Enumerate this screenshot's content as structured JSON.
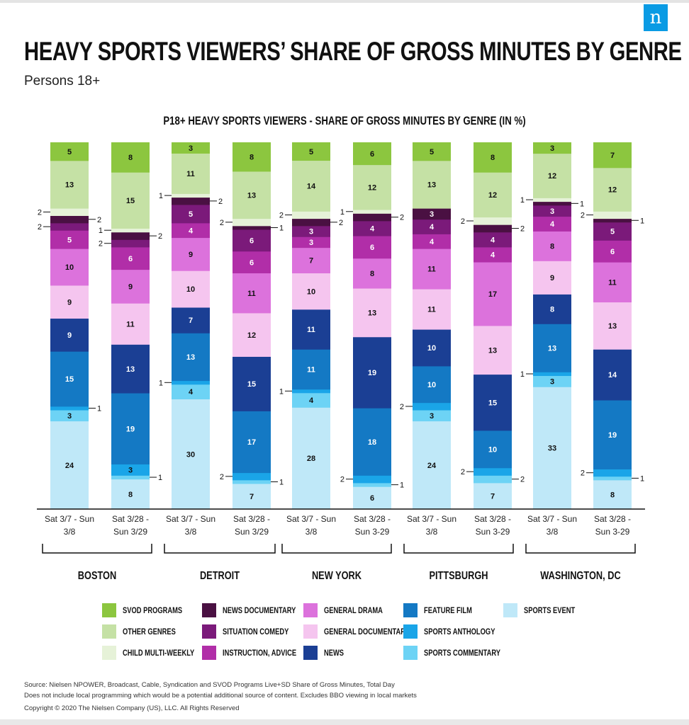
{
  "logo": {
    "letter": "n"
  },
  "header": {
    "title": "HEAVY SPORTS VIEWERS’ SHARE OF GROSS MINUTES BY GENRE",
    "subtitle": "Persons 18+"
  },
  "colors": {
    "svod": "#8cc63f",
    "other": "#c5e1a5",
    "child": "#e6f2d8",
    "news_doc": "#4a1042",
    "sitcom": "#7b1a7a",
    "instruction": "#b12ea8",
    "drama": "#dc72dc",
    "gen_doc": "#f5c5ef",
    "news": "#1b3f94",
    "feature_film": "#1479c4",
    "anthology": "#1aa5e8",
    "commentary": "#6dd3f5",
    "sports_event": "#bfe8f8"
  },
  "chart_data": {
    "type": "bar",
    "stacked": true,
    "title": "P18+ HEAVY SPORTS VIEWERS - SHARE OF GROSS MINUTES BY GENRE (IN %)",
    "ylabel": "",
    "ylim": [
      0,
      100
    ],
    "value_display": "P18+ HEAVY SPORTS VIEWERS - SHARE OF GROSS MINUTES BY GENRE (IN %)",
    "categories": [
      "Sat 3/7 - Sun 3/8",
      "Sat 3/28 - Sun 3/29",
      "Sat 3/7 - Sun 3/8",
      "Sat 3/28 - Sun 3/29",
      "Sat 3/7 - Sun 3/8",
      "Sat 3/28 - Sun 3-29",
      "Sat 3/7 - Sun 3/8",
      "Sat 3/28 - Sun 3-29",
      "Sat 3/7 - Sun 3/8",
      "Sat 3/28 - Sun 3-29"
    ],
    "category_lines": [
      [
        "Sat 3/7 - Sun",
        "3/8"
      ],
      [
        "Sat 3/28 -",
        "Sun 3/29"
      ],
      [
        "Sat 3/7 - Sun",
        "3/8"
      ],
      [
        "Sat 3/28 -",
        "Sun 3/29"
      ],
      [
        "Sat 3/7 - Sun",
        "3/8"
      ],
      [
        "Sat 3/28 -",
        "Sun 3-29"
      ],
      [
        "Sat 3/7 - Sun",
        "3/8"
      ],
      [
        "Sat 3/28 -",
        "Sun 3-29"
      ],
      [
        "Sat 3/7 - Sun",
        "3/8"
      ],
      [
        "Sat 3/28 -",
        "Sun 3-29"
      ]
    ],
    "groups": [
      {
        "name": "BOSTON",
        "bars": [
          0,
          1
        ]
      },
      {
        "name": "DETROIT",
        "bars": [
          2,
          3
        ]
      },
      {
        "name": "NEW YORK",
        "bars": [
          4,
          5
        ]
      },
      {
        "name": "PITTSBURGH",
        "bars": [
          6,
          7
        ]
      },
      {
        "name": "WASHINGTON, DC",
        "bars": [
          8,
          9
        ]
      }
    ],
    "series": [
      {
        "name": "SPORTS EVENT",
        "key": "sports_event",
        "values": [
          24,
          8,
          30,
          7,
          28,
          6,
          24,
          7,
          33,
          8
        ]
      },
      {
        "name": "SPORTS COMMENTARY",
        "key": "commentary",
        "values": [
          3,
          1,
          4,
          1,
          4,
          1,
          3,
          2,
          3,
          1
        ]
      },
      {
        "name": "SPORTS ANTHOLOGY",
        "key": "anthology",
        "values": [
          1,
          3,
          1,
          2,
          1,
          2,
          2,
          2,
          1,
          2
        ]
      },
      {
        "name": "FEATURE FILM",
        "key": "feature_film",
        "values": [
          15,
          19,
          13,
          17,
          11,
          18,
          10,
          10,
          13,
          19
        ]
      },
      {
        "name": "NEWS",
        "key": "news",
        "values": [
          9,
          13,
          7,
          15,
          11,
          19,
          10,
          15,
          8,
          14
        ]
      },
      {
        "name": "GENERAL DOCUMENTARY",
        "key": "gen_doc",
        "values": [
          9,
          11,
          10,
          12,
          10,
          13,
          11,
          13,
          9,
          13
        ]
      },
      {
        "name": "GENERAL DRAMA",
        "key": "drama",
        "values": [
          10,
          9,
          9,
          11,
          7,
          8,
          11,
          17,
          8,
          11
        ]
      },
      {
        "name": "INSTRUCTION, ADVICE",
        "key": "instruction",
        "values": [
          5,
          6,
          4,
          6,
          3,
          6,
          4,
          4,
          4,
          6
        ]
      },
      {
        "name": "SITUATION COMEDY",
        "key": "sitcom",
        "values": [
          2,
          2,
          5,
          6,
          3,
          4,
          4,
          4,
          3,
          5
        ]
      },
      {
        "name": "NEWS DOCUMENTARY",
        "key": "news_doc",
        "values": [
          2,
          2,
          2,
          1,
          2,
          2,
          3,
          2,
          1,
          1
        ]
      },
      {
        "name": "CHILD MULTI-WEEKLY",
        "key": "child",
        "values": [
          2,
          1,
          1,
          2,
          2,
          1,
          0,
          2,
          1,
          2
        ]
      },
      {
        "name": "OTHER GENRES",
        "key": "other",
        "values": [
          13,
          15,
          11,
          13,
          14,
          12,
          13,
          12,
          12,
          12
        ]
      },
      {
        "name": "SVOD PROGRAMS",
        "key": "svod",
        "values": [
          5,
          8,
          3,
          8,
          5,
          6,
          5,
          8,
          3,
          7
        ]
      }
    ],
    "legend_order": [
      [
        "SVOD PROGRAMS",
        "OTHER GENRES",
        "CHILD MULTI-WEEKLY"
      ],
      [
        "NEWS DOCUMENTARY",
        "SITUATION COMEDY",
        "INSTRUCTION, ADVICE"
      ],
      [
        "GENERAL DRAMA",
        "GENERAL DOCUMENTARY",
        "NEWS"
      ],
      [
        "FEATURE FILM",
        "SPORTS ANTHOLOGY",
        "SPORTS COMMENTARY"
      ],
      [
        "SPORTS EVENT"
      ]
    ]
  },
  "footer": {
    "source": "Source: Nielsen NPOWER, Broadcast, Cable, Syndication and SVOD Programs Live+SD Share of Gross Minutes, Total Day",
    "note": "Does not include local programming which would be a potential additional source of content. Excludes BBO viewing in local markets",
    "copyright": "Copyright © 2020 The Nielsen Company (US), LLC. All Rights Reserved"
  }
}
